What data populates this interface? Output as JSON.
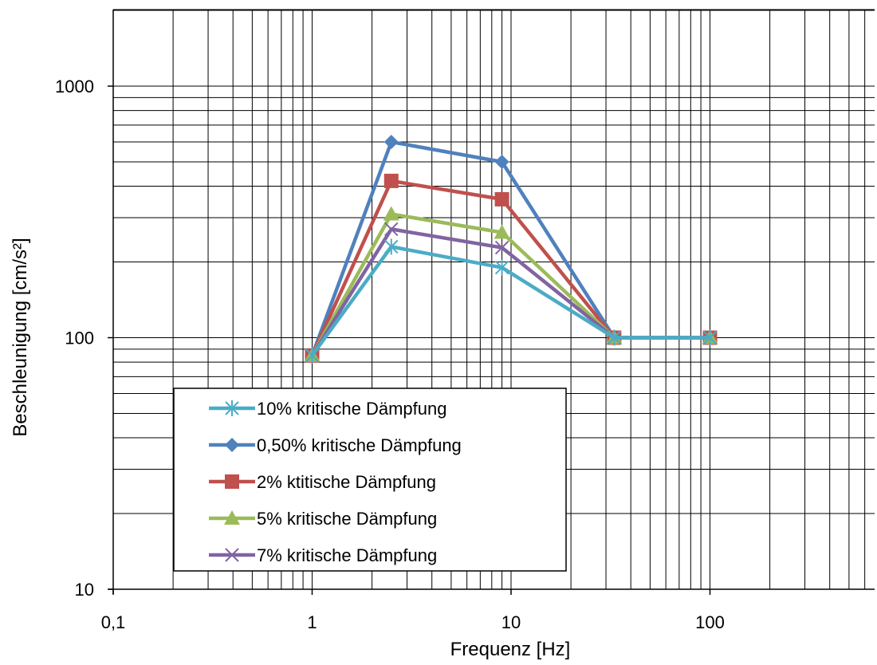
{
  "chart_data": {
    "type": "line",
    "title": "",
    "xlabel": "Frequenz  [Hz]",
    "ylabel": "Beschleunigung [cm/s²]",
    "xscale": "log",
    "yscale": "log",
    "xlim": [
      0.1,
      700
    ],
    "ylim": [
      10,
      2000
    ],
    "grid": true,
    "legend_position": "bottom-left",
    "x_tick_labels": [
      "0,1",
      "1",
      "10",
      "100"
    ],
    "y_tick_labels": [
      "10",
      "100",
      "1000"
    ],
    "series": [
      {
        "name": "10% kritische Dämpfung",
        "color": "#4bacc6",
        "marker": "star",
        "x": [
          1,
          2.5,
          9,
          33,
          100
        ],
        "y": [
          85,
          230,
          190,
          100,
          100
        ]
      },
      {
        "name": "0,50% kritische Dämpfung",
        "color": "#4f81bd",
        "marker": "diamond",
        "x": [
          1,
          2.5,
          9,
          33,
          100
        ],
        "y": [
          85,
          600,
          500,
          100,
          100
        ]
      },
      {
        "name": "2% ktitische Dämpfung",
        "color": "#c0504d",
        "marker": "square",
        "x": [
          1,
          2.5,
          9,
          33,
          100
        ],
        "y": [
          85,
          420,
          355,
          100,
          100
        ]
      },
      {
        "name": "5% kritische Dämpfung",
        "color": "#9bbb59",
        "marker": "triangle",
        "x": [
          1,
          2.5,
          9,
          33,
          100
        ],
        "y": [
          85,
          310,
          262,
          100,
          100
        ]
      },
      {
        "name": "7% kritische Dämpfung",
        "color": "#8064a2",
        "marker": "x",
        "x": [
          1,
          2.5,
          9,
          33,
          100
        ],
        "y": [
          85,
          270,
          228,
          100,
          100
        ]
      }
    ]
  }
}
